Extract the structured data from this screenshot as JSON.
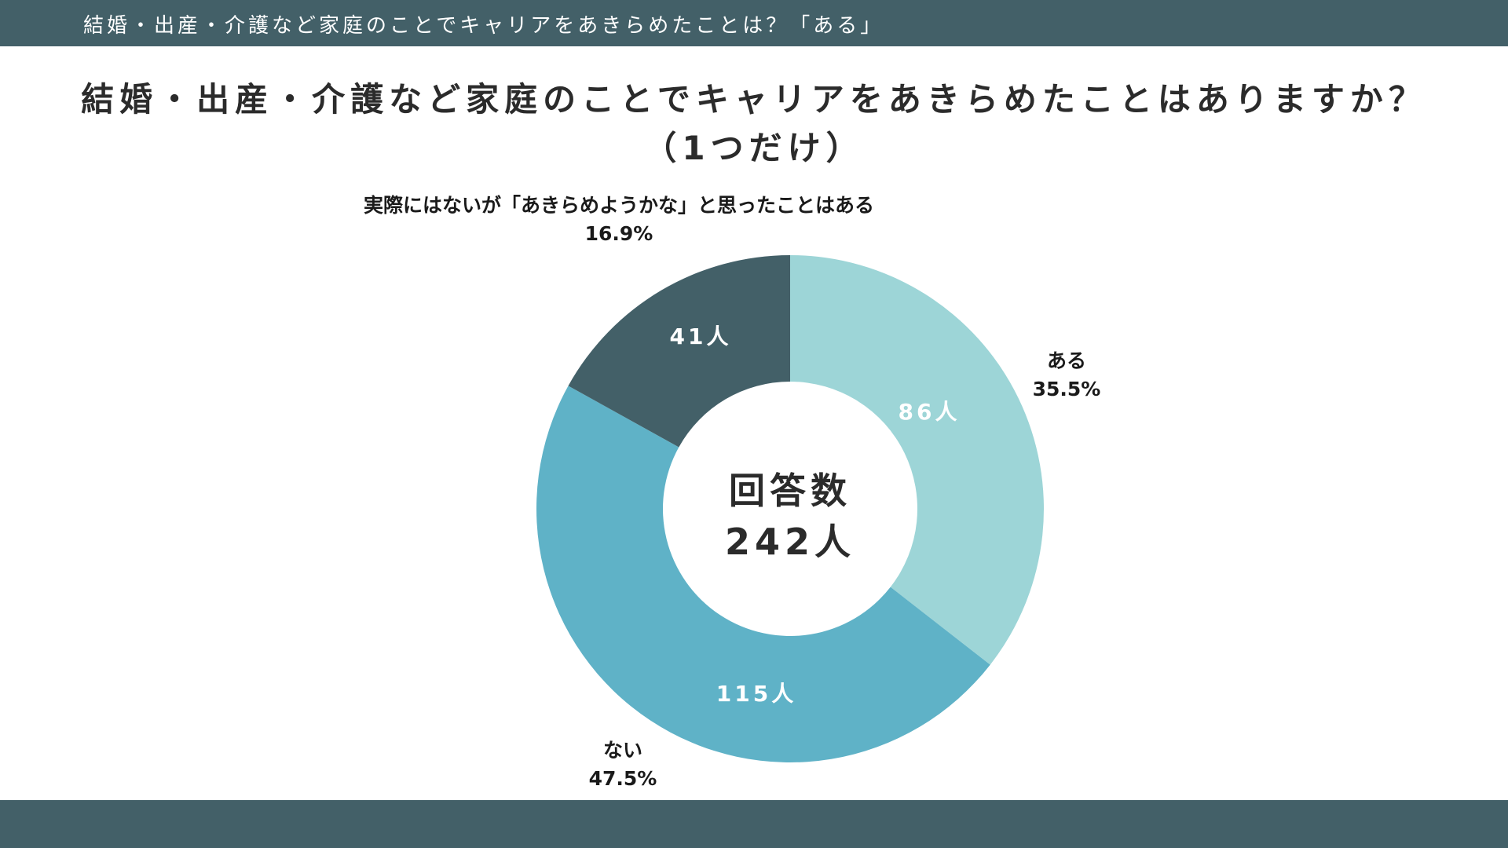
{
  "header": {
    "banner": "結婚・出産・介護など家庭のことでキャリアをあきらめたことは？「ある」"
  },
  "title": {
    "line1": "結婚・出産・介護など家庭のことでキャリアをあきらめたことはありますか？",
    "line2": "（1つだけ）"
  },
  "colors": {
    "bar": "#436068",
    "slice_aru": "#9dd5d7",
    "slice_nai": "#5fb2c7",
    "slice_other": "#436068"
  },
  "chart_data": {
    "type": "pie",
    "style": "donut",
    "title": "結婚・出産・介護など家庭のことでキャリアをあきらめたことはありますか？（1つだけ）",
    "center_label": "回答数",
    "total_label": "242人",
    "total": 242,
    "slices": [
      {
        "name": "ある",
        "value": 86,
        "count_label": "86人",
        "percent_label": "35.5%",
        "color": "#9dd5d7",
        "count_color": "#ffffff"
      },
      {
        "name": "ない",
        "value": 115,
        "count_label": "115人",
        "percent_label": "47.5%",
        "color": "#5fb2c7",
        "count_color": "#ffffff"
      },
      {
        "name": "実際にはないが「あきらめようかな」と思ったことはある",
        "value": 41,
        "count_label": "41人",
        "percent_label": "16.9%",
        "color": "#436068",
        "count_color": "#ffffff"
      }
    ]
  }
}
